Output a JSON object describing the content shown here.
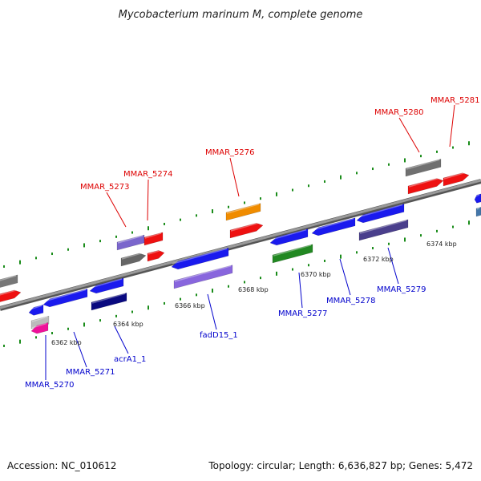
{
  "title": "Mycobacterium marinum M, complete genome",
  "footer": {
    "accession": "Accession: NC_010612",
    "summary": "Topology: circular; Length: 6,636,827 bp; Genes: 5,472"
  },
  "colors": {
    "forward_label": "#dd0000",
    "reverse_label": "#0000cc",
    "backbone": "#888888",
    "tick": "#1a8c1a"
  },
  "position_labels": [
    "6362 kbp",
    "6364 kbp",
    "6366 kbp",
    "6368 kbp",
    "6370 kbp",
    "6372 kbp",
    "6374 kbp"
  ],
  "forward_gene_labels": [
    "MMAR_5273",
    "MMAR_5274",
    "MMAR_5276",
    "MMAR_5280",
    "MMAR_5281"
  ],
  "reverse_gene_labels": [
    "MMAR_5270",
    "MMAR_5271",
    "acrA1_1",
    "fadD15_1",
    "MMAR_5277",
    "MMAR_5278",
    "MMAR_5279"
  ],
  "genes": [
    {
      "strand": "forward",
      "color": "#777777"
    },
    {
      "strand": "forward",
      "color": "#ee1111"
    },
    {
      "strand": "forward",
      "color": "#7a66cc"
    },
    {
      "strand": "forward",
      "color": "#ee1111"
    },
    {
      "strand": "forward",
      "color": "#666666"
    },
    {
      "strand": "forward",
      "color": "#ee1111"
    },
    {
      "strand": "forward",
      "color": "#f08c00"
    },
    {
      "strand": "forward",
      "color": "#ee1111"
    },
    {
      "strand": "forward",
      "color": "#707070"
    },
    {
      "strand": "forward",
      "color": "#ee1111"
    },
    {
      "strand": "forward",
      "color": "#ee1111"
    },
    {
      "strand": "forward",
      "color": "#1a1aee"
    },
    {
      "strand": "reverse",
      "color": "#1a1aee"
    },
    {
      "strand": "reverse",
      "color": "#1a1aee"
    },
    {
      "strand": "reverse",
      "color": "#1a1aee"
    },
    {
      "strand": "reverse",
      "color": "#0a0a80"
    },
    {
      "strand": "reverse",
      "color": "#1a1aee"
    },
    {
      "strand": "reverse",
      "color": "#8866dd"
    },
    {
      "strand": "reverse",
      "color": "#1a1aee"
    },
    {
      "strand": "reverse",
      "color": "#228822"
    },
    {
      "strand": "reverse",
      "color": "#1a1aee"
    },
    {
      "strand": "reverse",
      "color": "#1a1aee"
    },
    {
      "strand": "reverse",
      "color": "#4a3f8c"
    },
    {
      "strand": "reverse",
      "color": "#bbbbbb"
    },
    {
      "strand": "reverse",
      "color": "#ee1199"
    },
    {
      "strand": "reverse",
      "color": "#4477aa"
    }
  ]
}
